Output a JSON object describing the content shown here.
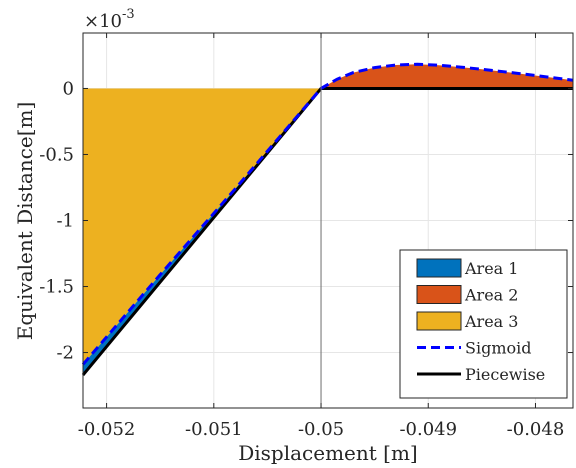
{
  "chart_data": {
    "type": "area",
    "xlabel": "Displacement [m]",
    "ylabel": "Equivalent Distance[m]",
    "y_exponent_label": "×10",
    "y_exponent_power": "-3",
    "xlim": [
      -0.05222,
      -0.04765
    ],
    "ylim_scaled": [
      -2.42,
      0.42
    ],
    "x_ticks": [
      -0.052,
      -0.051,
      -0.05,
      -0.049,
      -0.048
    ],
    "x_tick_labels": [
      "-0.052",
      "-0.051",
      "-0.05",
      "-0.049",
      "-0.048"
    ],
    "y_ticks": [
      0,
      -0.5,
      -1,
      -1.5,
      -2
    ],
    "y_tick_labels": [
      "0",
      "-0.5",
      "-1",
      "-1.5",
      "-2"
    ],
    "grid": true,
    "legend_position": "bottom-right",
    "series": [
      {
        "name": "Area 1",
        "kind": "fill",
        "color": "#0072BD",
        "description": "between Sigmoid and Piecewise for x < -0.05"
      },
      {
        "name": "Area 2",
        "kind": "fill",
        "color": "#D95319",
        "description": "between Sigmoid and 0 for x > -0.05"
      },
      {
        "name": "Area 3",
        "kind": "fill",
        "color": "#EDB120",
        "description": "between Sigmoid and 0 for x < -0.05"
      },
      {
        "name": "Sigmoid",
        "kind": "line",
        "style": "dashed",
        "color": "#0000FF",
        "x": [
          -0.05222,
          -0.0515,
          -0.0508,
          -0.0503,
          -0.05,
          -0.04985,
          -0.0497,
          -0.0495,
          -0.0493,
          -0.0491,
          -0.0489,
          -0.0487,
          -0.0485,
          -0.0483,
          -0.0481,
          -0.0479,
          -0.04765
        ],
        "y": [
          -2.09,
          -1.41,
          -0.76,
          -0.285,
          0.0,
          0.07,
          0.12,
          0.158,
          0.178,
          0.183,
          0.176,
          0.162,
          0.145,
          0.127,
          0.108,
          0.088,
          0.062
        ]
      },
      {
        "name": "Piecewise",
        "kind": "line",
        "style": "solid",
        "color": "#000000",
        "x": [
          -0.05222,
          -0.05,
          -0.04765
        ],
        "y": [
          -2.17,
          0.0,
          0.0
        ]
      }
    ]
  }
}
